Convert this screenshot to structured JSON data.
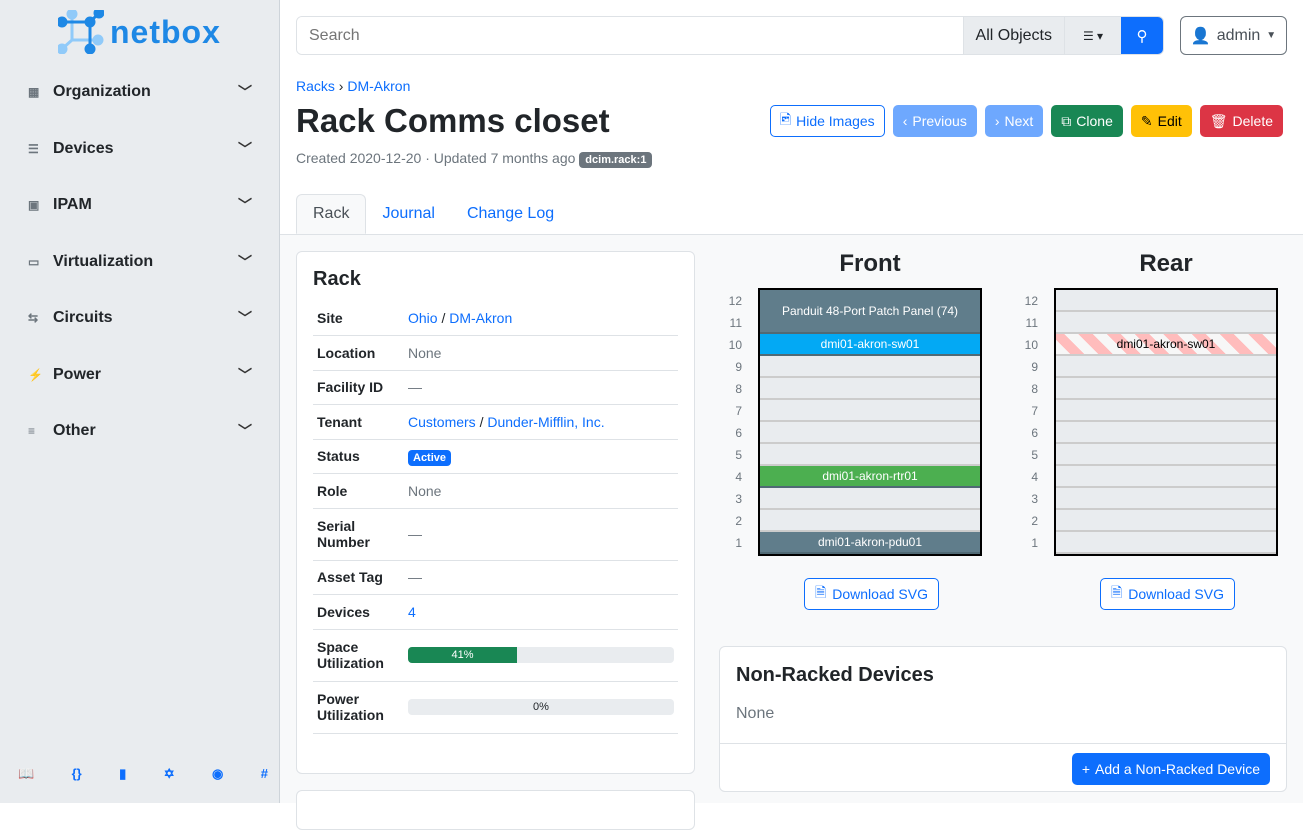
{
  "brand": "netbox",
  "sidebar": {
    "items": [
      {
        "label": "Organization",
        "icon": "domain-icon"
      },
      {
        "label": "Devices",
        "icon": "server-icon"
      },
      {
        "label": "IPAM",
        "icon": "counter-icon"
      },
      {
        "label": "Virtualization",
        "icon": "monitor-icon"
      },
      {
        "label": "Circuits",
        "icon": "transit-icon"
      },
      {
        "label": "Power",
        "icon": "flash-icon"
      },
      {
        "label": "Other",
        "icon": "notes-icon"
      }
    ],
    "footer": [
      "book-icon",
      "api-icon",
      "docs-icon",
      "graphql-icon",
      "github-icon",
      "slack-icon"
    ]
  },
  "search": {
    "placeholder": "Search",
    "scope": "All Objects"
  },
  "user": "admin",
  "breadcrumb": [
    "Racks",
    "DM-Akron"
  ],
  "title": "Rack Comms closet",
  "meta": {
    "text": "Created 2020-12-20 · Updated 7 months ago",
    "badge": "dcim.rack:1"
  },
  "buttons": [
    {
      "label": "Hide Images",
      "icon": "file-image-icon",
      "style": "outline"
    },
    {
      "label": "Previous",
      "icon": "chevron-left-icon",
      "style": "light"
    },
    {
      "label": "Next",
      "icon": "chevron-right-icon",
      "style": "light"
    },
    {
      "label": "Clone",
      "icon": "copy-icon",
      "style": "green"
    },
    {
      "label": "Edit",
      "icon": "pencil-icon",
      "style": "yellow"
    },
    {
      "label": "Delete",
      "icon": "trash-icon",
      "style": "red"
    }
  ],
  "tabs": [
    "Rack",
    "Journal",
    "Change Log"
  ],
  "rack": {
    "heading": "Rack",
    "rows": [
      {
        "k": "Site",
        "links": [
          "Ohio",
          "DM-Akron"
        ]
      },
      {
        "k": "Location",
        "v": "None"
      },
      {
        "k": "Facility ID",
        "v": "—"
      },
      {
        "k": "Tenant",
        "links": [
          "Customers",
          "Dunder-Mifflin, Inc."
        ]
      },
      {
        "k": "Status",
        "badge": "Active"
      },
      {
        "k": "Role",
        "v": "None"
      },
      {
        "k": "Serial Number",
        "v": "—"
      },
      {
        "k": "Asset Tag",
        "v": "—"
      },
      {
        "k": "Devices",
        "link": "4"
      },
      {
        "k": "Space Utilization",
        "progress": 41,
        "label": "41%"
      },
      {
        "k": "Power Utilization",
        "progress": 0,
        "label": "0%"
      }
    ]
  },
  "elevation": {
    "front": {
      "title": "Front",
      "devices": [
        {
          "name": "Panduit 48-Port Patch Panel (74)",
          "top": 12,
          "height": 2,
          "color": "#607d8b"
        },
        {
          "name": "dmi01-akron-sw01",
          "top": 10,
          "height": 1,
          "color": "#03a9f4"
        },
        {
          "name": "dmi01-akron-rtr01",
          "top": 4,
          "height": 1,
          "color": "#4caf50"
        },
        {
          "name": "dmi01-akron-pdu01",
          "top": 1,
          "height": 1,
          "color": "#607d8b"
        }
      ]
    },
    "rear": {
      "title": "Rear",
      "devices": [
        {
          "name": "dmi01-akron-sw01",
          "top": 10,
          "height": 1,
          "color": "stripe"
        }
      ]
    },
    "units": 12,
    "download": "Download SVG"
  },
  "nonracked": {
    "heading": "Non-Racked Devices",
    "empty": "None",
    "add": "Add a Non-Racked Device"
  }
}
